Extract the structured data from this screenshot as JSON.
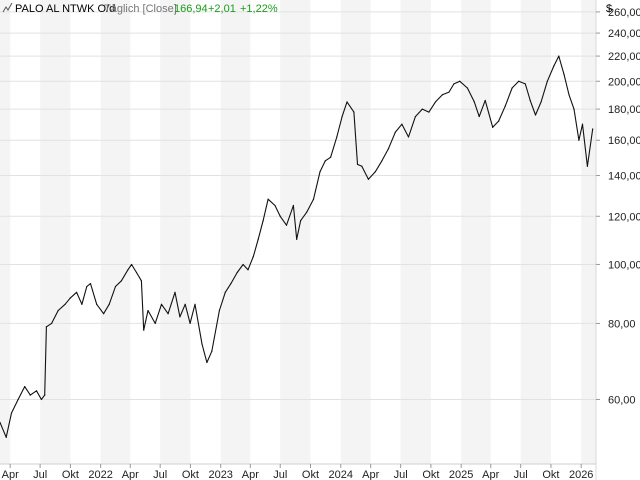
{
  "header": {
    "icon": "chart-line-icon",
    "symbol": "PALO AL NTWK O/d",
    "mode": "Täglich [Close]",
    "last": "166,94",
    "change": "+2,01",
    "change_pct": "+1,22%",
    "currency": "$",
    "up_color": "#1a9b1a",
    "muted_color": "#777777"
  },
  "chart_data": {
    "type": "line",
    "title": "PALO AL NTWK O/d",
    "xlabel": "",
    "ylabel": "",
    "y_scale": "log",
    "ylim": [
      47,
      272
    ],
    "xlim": [
      "2021-03-01",
      "2026-02-15"
    ],
    "x_tick_labels": [
      "Apr",
      "Jul",
      "Okt",
      "2022",
      "Apr",
      "Jul",
      "Okt",
      "2023",
      "Apr",
      "Jul",
      "Okt",
      "2024",
      "Apr",
      "Jul",
      "Okt",
      "2025",
      "Apr",
      "Jul",
      "Okt",
      "2026"
    ],
    "x_tick_dates": [
      "2021-04-01",
      "2021-07-01",
      "2021-10-01",
      "2022-01-01",
      "2022-04-01",
      "2022-07-01",
      "2022-10-01",
      "2023-01-01",
      "2023-04-01",
      "2023-07-01",
      "2023-10-01",
      "2024-01-01",
      "2024-04-01",
      "2024-07-01",
      "2024-10-01",
      "2025-01-01",
      "2025-04-01",
      "2025-07-01",
      "2025-10-01",
      "2026-01-01"
    ],
    "y_ticks": [
      60,
      80,
      100,
      120,
      140,
      160,
      180,
      200,
      220,
      240,
      260
    ],
    "y_tick_labels": [
      "60,00",
      "80,00",
      "100,00",
      "120,00",
      "140,00",
      "160,00",
      "180,00",
      "200,00",
      "220,00",
      "240,00",
      "260,00"
    ],
    "line_color": "#111111",
    "band_color": "#f4f4f4",
    "grid_color": "#e2e2e2",
    "series": [
      {
        "dates": [
          "2021-03-01",
          "2021-03-20",
          "2021-04-05",
          "2021-04-25",
          "2021-05-15",
          "2021-06-01",
          "2021-06-20",
          "2021-07-05",
          "2021-07-15",
          "2021-07-20",
          "2021-08-05",
          "2021-08-25",
          "2021-09-15",
          "2021-09-30",
          "2021-10-20",
          "2021-11-05",
          "2021-11-20",
          "2021-12-01",
          "2021-12-20",
          "2022-01-10",
          "2022-01-27",
          "2022-02-15",
          "2022-03-05",
          "2022-03-25",
          "2022-04-05",
          "2022-04-20",
          "2022-05-05",
          "2022-05-12",
          "2022-05-25",
          "2022-06-16",
          "2022-07-05",
          "2022-07-25",
          "2022-08-15",
          "2022-08-30",
          "2022-09-15",
          "2022-09-30",
          "2022-10-15",
          "2022-11-05",
          "2022-11-20",
          "2022-12-05",
          "2022-12-28",
          "2023-01-15",
          "2023-02-01",
          "2023-02-20",
          "2023-03-10",
          "2023-03-25",
          "2023-04-10",
          "2023-04-25",
          "2023-05-10",
          "2023-05-25",
          "2023-06-15",
          "2023-07-01",
          "2023-07-20",
          "2023-08-10",
          "2023-08-20",
          "2023-09-01",
          "2023-09-20",
          "2023-10-10",
          "2023-10-30",
          "2023-11-15",
          "2023-12-01",
          "2023-12-20",
          "2024-01-05",
          "2024-01-20",
          "2024-02-10",
          "2024-02-21",
          "2024-03-05",
          "2024-03-25",
          "2024-04-15",
          "2024-05-05",
          "2024-05-25",
          "2024-06-15",
          "2024-07-05",
          "2024-07-25",
          "2024-08-15",
          "2024-09-05",
          "2024-09-25",
          "2024-10-15",
          "2024-11-05",
          "2024-11-25",
          "2024-12-10",
          "2024-12-28",
          "2025-01-20",
          "2025-02-10",
          "2025-02-25",
          "2025-03-15",
          "2025-04-07",
          "2025-04-25",
          "2025-05-15",
          "2025-06-05",
          "2025-06-25",
          "2025-07-15",
          "2025-07-30",
          "2025-08-15",
          "2025-09-01",
          "2025-09-20",
          "2025-10-10",
          "2025-10-25",
          "2025-11-10",
          "2025-11-25",
          "2025-12-10",
          "2025-12-25",
          "2026-01-05",
          "2026-01-20",
          "2026-02-05"
        ],
        "values": [
          55,
          52,
          57,
          60,
          63,
          61,
          62,
          60,
          61,
          79,
          80,
          84,
          86,
          88,
          90,
          86,
          92,
          93,
          86,
          83,
          86,
          92,
          94,
          98,
          100,
          97,
          94,
          78,
          84,
          80,
          86,
          83,
          90,
          82,
          86,
          80,
          86,
          74,
          69,
          72,
          84,
          90,
          93,
          97,
          100,
          98,
          103,
          110,
          118,
          128,
          125,
          120,
          116,
          125,
          110,
          118,
          122,
          128,
          142,
          148,
          150,
          162,
          175,
          185,
          178,
          146,
          145,
          138,
          142,
          148,
          155,
          165,
          170,
          162,
          175,
          180,
          178,
          185,
          190,
          192,
          198,
          200,
          195,
          185,
          175,
          186,
          168,
          172,
          182,
          195,
          200,
          198,
          186,
          176,
          185,
          200,
          212,
          220,
          205,
          190,
          180,
          160,
          170,
          145,
          167
        ]
      }
    ]
  }
}
